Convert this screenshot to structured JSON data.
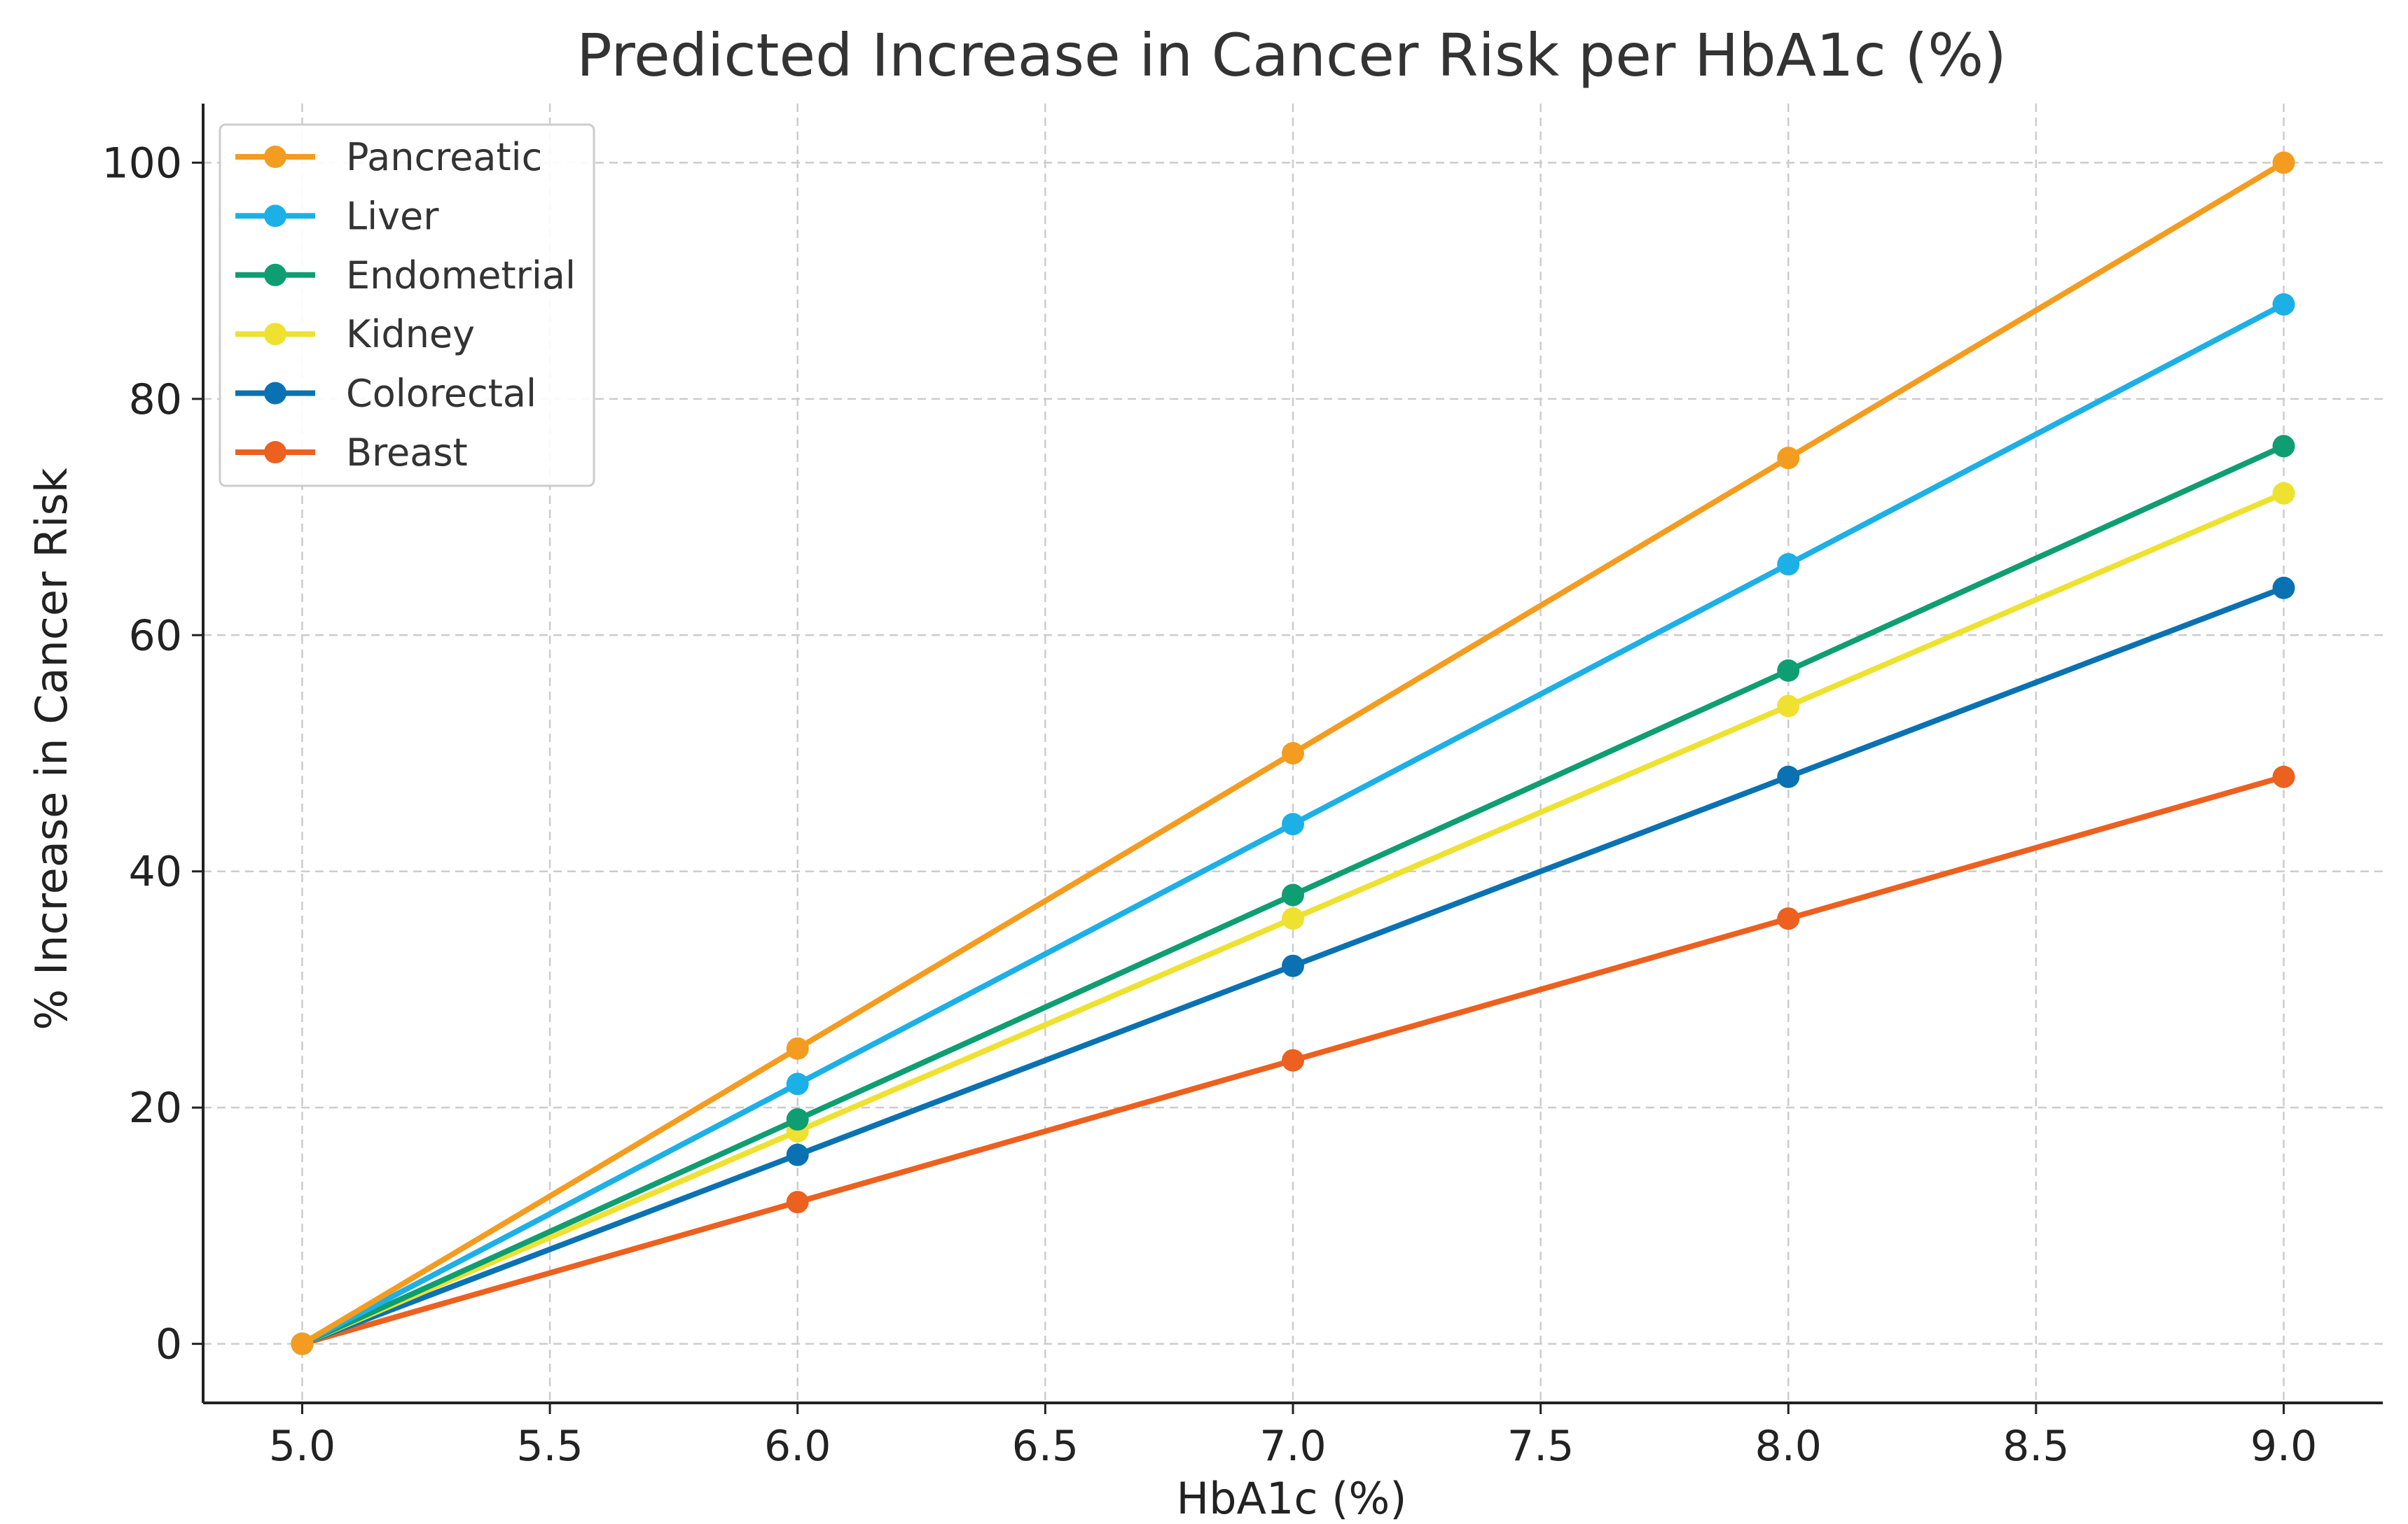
{
  "chart_data": {
    "type": "line",
    "title": "Predicted Increase in Cancer Risk per HbA1c (%)",
    "xlabel": "HbA1c (%)",
    "ylabel": "% Increase in Cancer Risk",
    "x": [
      5.0,
      6.0,
      7.0,
      8.0,
      9.0
    ],
    "xlim": [
      4.8,
      9.2
    ],
    "ylim": [
      -5,
      105
    ],
    "xticks": [
      "5.0",
      "5.5",
      "6.0",
      "6.5",
      "7.0",
      "7.5",
      "8.0",
      "8.5",
      "9.0"
    ],
    "yticks": [
      "0",
      "20",
      "40",
      "60",
      "80",
      "100"
    ],
    "grid": true,
    "legend_position": "top-left",
    "series": [
      {
        "name": "Pancreatic",
        "color": "#F39C1F",
        "values": [
          0,
          25,
          50,
          75,
          100
        ]
      },
      {
        "name": "Liver",
        "color": "#1CB0E6",
        "values": [
          0,
          22,
          44,
          66,
          88
        ]
      },
      {
        "name": "Endometrial",
        "color": "#0E9E72",
        "values": [
          0,
          19,
          38,
          57,
          76
        ]
      },
      {
        "name": "Kidney",
        "color": "#EEE130",
        "values": [
          0,
          18,
          36,
          54,
          72
        ]
      },
      {
        "name": "Colorectal",
        "color": "#0A72B2",
        "values": [
          0,
          16,
          32,
          48,
          64
        ]
      },
      {
        "name": "Breast",
        "color": "#EC6020",
        "values": [
          0,
          12,
          24,
          36,
          48
        ]
      }
    ]
  }
}
